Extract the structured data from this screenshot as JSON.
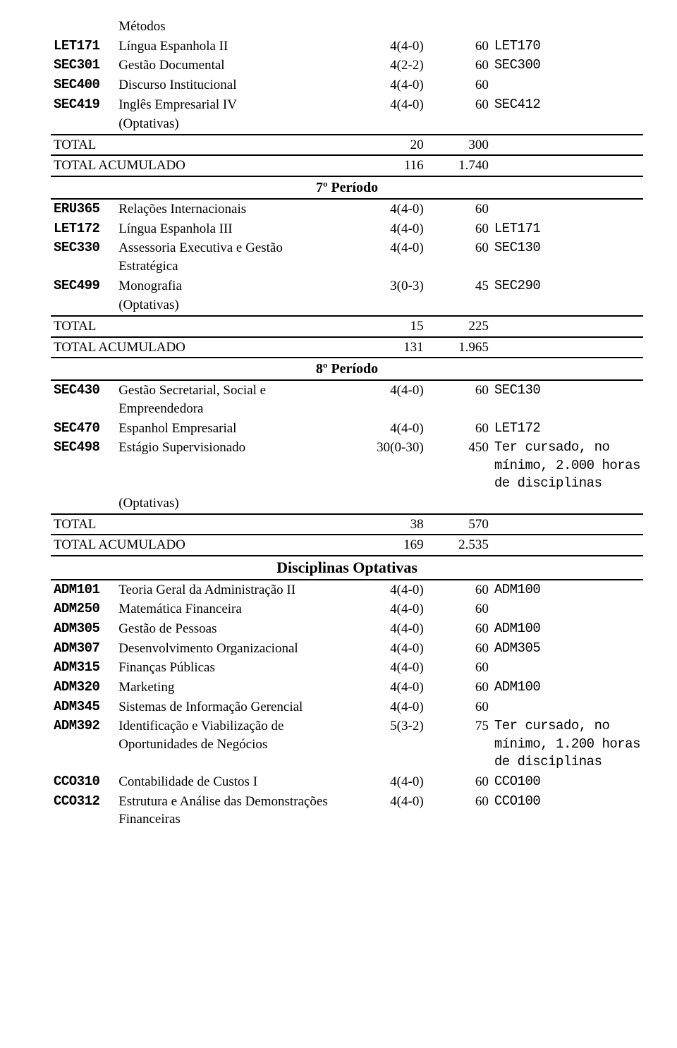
{
  "continuation": "Métodos",
  "period6": {
    "rows": [
      {
        "code": "LET171",
        "name": "Língua Espanhola II",
        "load": "4(4-0)",
        "hours": "60",
        "prereq": "LET170"
      },
      {
        "code": "SEC301",
        "name": "Gestão Documental",
        "load": "4(2-2)",
        "hours": "60",
        "prereq": "SEC300"
      },
      {
        "code": "SEC400",
        "name": "Discurso Institucional",
        "load": "4(4-0)",
        "hours": "60",
        "prereq": ""
      },
      {
        "code": "SEC419",
        "name": "Inglês Empresarial IV",
        "load": "4(4-0)",
        "hours": "60",
        "prereq": "SEC412"
      }
    ],
    "optativas_label": "(Optativas)",
    "total_label": "TOTAL",
    "total_cr": "20",
    "total_hr": "300",
    "acum_label": "TOTAL ACUMULADO",
    "acum_cr": "116",
    "acum_hr": "1.740"
  },
  "period7": {
    "title": "7º Período",
    "rows": [
      {
        "code": "ERU365",
        "name": "Relações Internacionais",
        "load": "4(4-0)",
        "hours": "60",
        "prereq": ""
      },
      {
        "code": "LET172",
        "name": "Língua Espanhola III",
        "load": "4(4-0)",
        "hours": "60",
        "prereq": "LET171"
      },
      {
        "code": "SEC330",
        "name": "Assessoria Executiva e Gestão Estratégica",
        "load": "4(4-0)",
        "hours": "60",
        "prereq": "SEC130"
      },
      {
        "code": "SEC499",
        "name": "Monografia",
        "load": "3(0-3)",
        "hours": "45",
        "prereq": "SEC290"
      }
    ],
    "optativas_label": "(Optativas)",
    "total_label": "TOTAL",
    "total_cr": "15",
    "total_hr": "225",
    "acum_label": "TOTAL ACUMULADO",
    "acum_cr": "131",
    "acum_hr": "1.965"
  },
  "period8": {
    "title": "8º Período",
    "rows": [
      {
        "code": "SEC430",
        "name": "Gestão Secretarial, Social e Empreendedora",
        "load": "4(4-0)",
        "hours": "60",
        "prereq": "SEC130"
      },
      {
        "code": "SEC470",
        "name": "Espanhol Empresarial",
        "load": "4(4-0)",
        "hours": "60",
        "prereq": "LET172"
      },
      {
        "code": "SEC498",
        "name": "Estágio Supervisionado",
        "load": "30(0-30)",
        "hours": "450",
        "prereq": "Ter cursado, no mínimo, 2.000 horas de disciplinas"
      }
    ],
    "optativas_label": "(Optativas)",
    "total_label": "TOTAL",
    "total_cr": "38",
    "total_hr": "570",
    "acum_label": "TOTAL ACUMULADO",
    "acum_cr": "169",
    "acum_hr": "2.535"
  },
  "optativas": {
    "title": "Disciplinas Optativas",
    "rows": [
      {
        "code": "ADM101",
        "name": "Teoria Geral da Administração II",
        "load": "4(4-0)",
        "hours": "60",
        "prereq": "ADM100"
      },
      {
        "code": "ADM250",
        "name": "Matemática Financeira",
        "load": "4(4-0)",
        "hours": "60",
        "prereq": ""
      },
      {
        "code": "ADM305",
        "name": "Gestão de Pessoas",
        "load": "4(4-0)",
        "hours": "60",
        "prereq": "ADM100"
      },
      {
        "code": "ADM307",
        "name": "Desenvolvimento Organizacional",
        "load": "4(4-0)",
        "hours": "60",
        "prereq": "ADM305"
      },
      {
        "code": "ADM315",
        "name": "Finanças Públicas",
        "load": "4(4-0)",
        "hours": "60",
        "prereq": ""
      },
      {
        "code": "ADM320",
        "name": "Marketing",
        "load": "4(4-0)",
        "hours": "60",
        "prereq": "ADM100"
      },
      {
        "code": "ADM345",
        "name": "Sistemas de Informação Gerencial",
        "load": "4(4-0)",
        "hours": "60",
        "prereq": ""
      },
      {
        "code": "ADM392",
        "name": "Identificação e Viabilização de Oportunidades de Negócios",
        "load": "5(3-2)",
        "hours": "75",
        "prereq": "Ter cursado, no mínimo, 1.200 horas de disciplinas"
      },
      {
        "code": "CCO310",
        "name": "Contabilidade de Custos I",
        "load": "4(4-0)",
        "hours": "60",
        "prereq": "CCO100"
      },
      {
        "code": "CCO312",
        "name": "Estrutura e Análise das Demonstrações Financeiras",
        "load": "4(4-0)",
        "hours": "60",
        "prereq": "CCO100"
      }
    ]
  }
}
